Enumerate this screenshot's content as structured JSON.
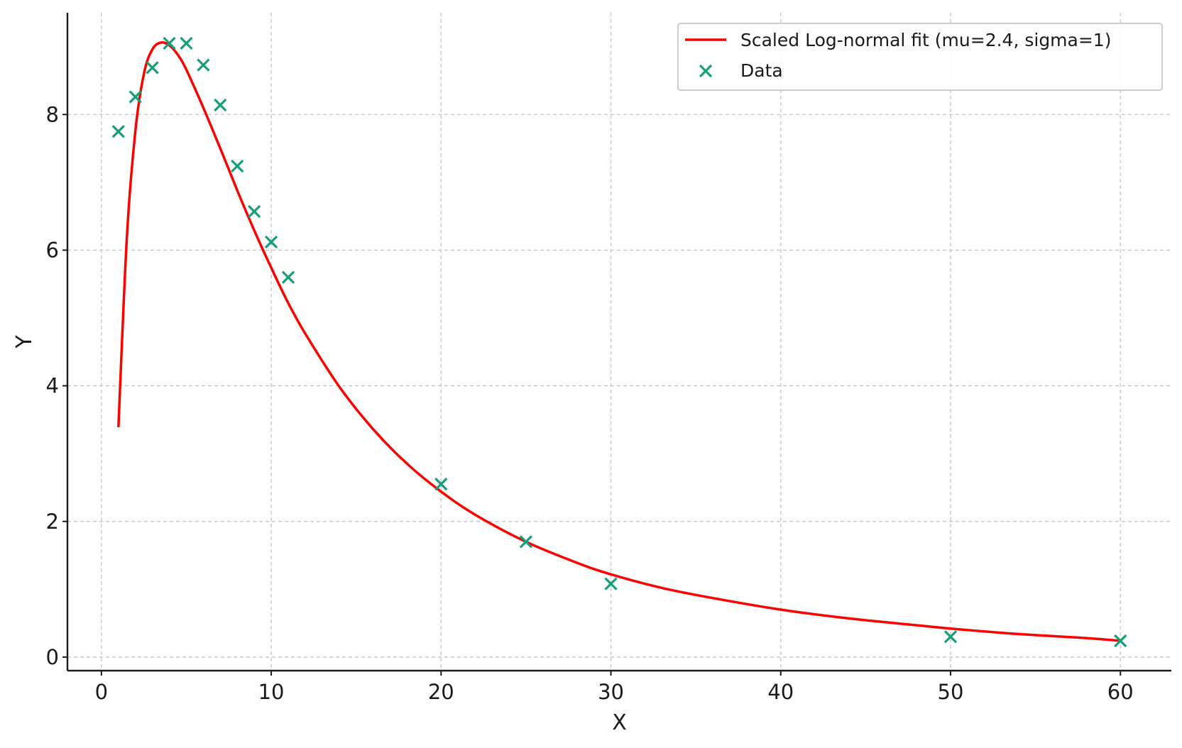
{
  "chart_data": {
    "type": "scatter",
    "title": "",
    "xlabel": "X",
    "ylabel": "Y",
    "xlim": [
      -2,
      63
    ],
    "ylim": [
      -0.2,
      9.5
    ],
    "xticks": [
      0,
      10,
      20,
      30,
      40,
      50,
      60
    ],
    "yticks": [
      0,
      2,
      4,
      6,
      8
    ],
    "grid": true,
    "legend_position": "top-right",
    "series": [
      {
        "name": "Scaled Log-normal fit (mu=2.4, sigma=1)",
        "kind": "line",
        "color": "#ff0000",
        "x": [
          1,
          1.5,
          2,
          2.5,
          3,
          3.5,
          4,
          4.5,
          5,
          6,
          7,
          8,
          9,
          10,
          11,
          12,
          14,
          16,
          18,
          20,
          22,
          25,
          28,
          30,
          33,
          36,
          40,
          44,
          48,
          50,
          54,
          58,
          60
        ],
        "y": [
          3.39,
          6.19,
          7.76,
          8.6,
          8.96,
          9.06,
          9.02,
          8.88,
          8.66,
          8.1,
          7.5,
          6.88,
          6.29,
          5.74,
          5.22,
          4.77,
          3.99,
          3.36,
          2.85,
          2.44,
          2.1,
          1.7,
          1.39,
          1.22,
          1.02,
          0.87,
          0.7,
          0.57,
          0.47,
          0.42,
          0.34,
          0.28,
          0.24
        ]
      },
      {
        "name": "Data",
        "kind": "scatter",
        "marker": "x",
        "color": "#159e7a",
        "x": [
          1,
          2,
          3,
          4,
          5,
          6,
          7,
          8,
          9,
          10,
          11,
          20,
          25,
          30,
          50,
          60
        ],
        "y": [
          7.75,
          8.26,
          8.69,
          9.05,
          9.05,
          8.73,
          8.14,
          7.24,
          6.57,
          6.12,
          5.6,
          2.55,
          1.7,
          1.08,
          0.3,
          0.24
        ]
      }
    ]
  }
}
